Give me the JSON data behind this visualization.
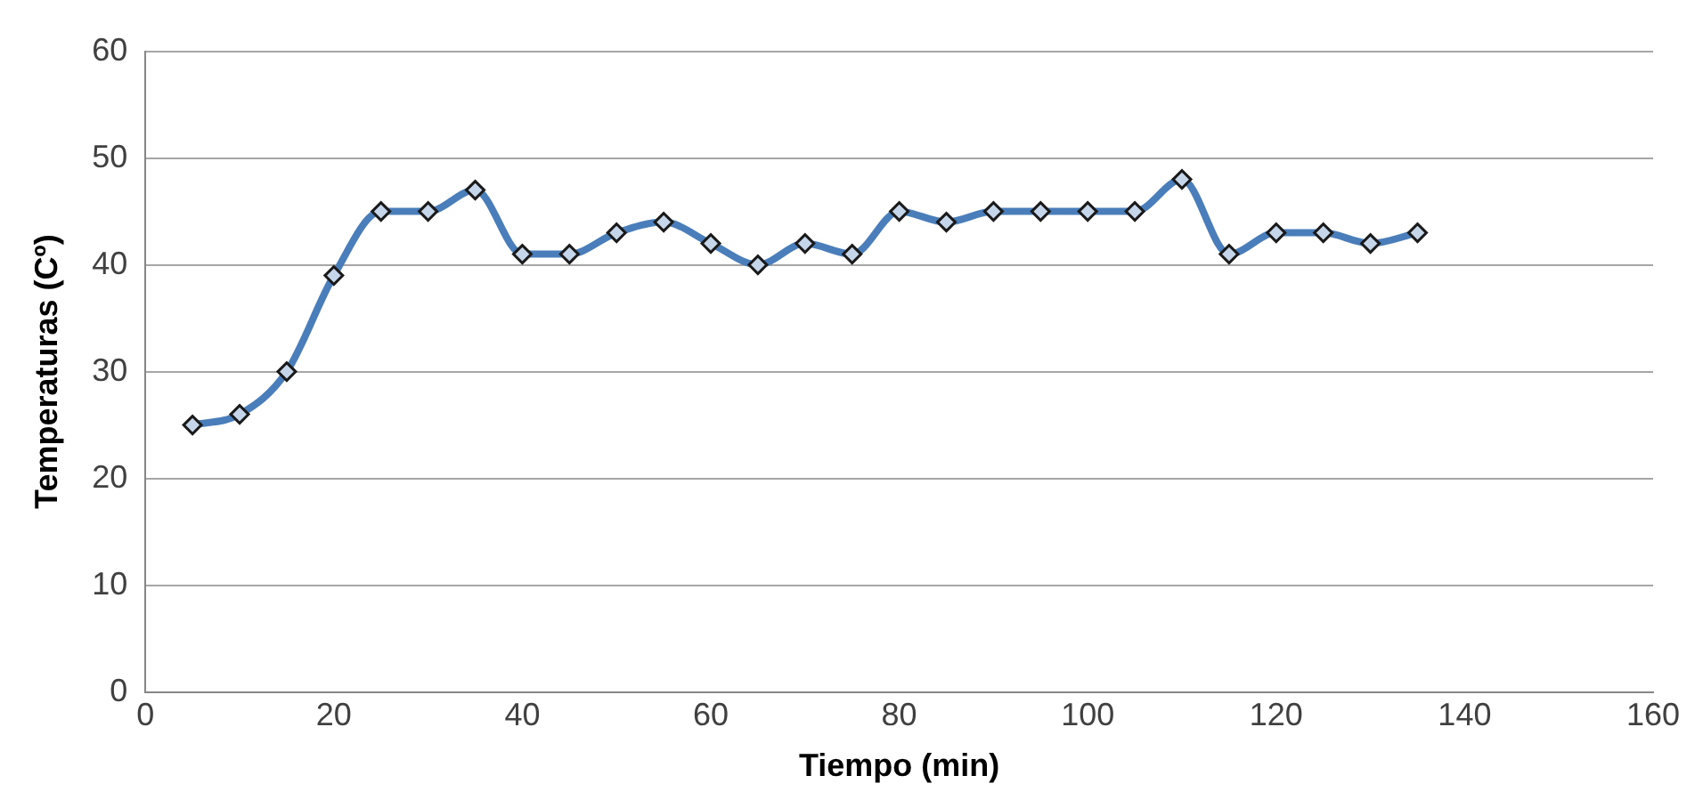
{
  "chart_data": {
    "type": "line",
    "xlabel": "Tiempo (min)",
    "ylabel": "Temperaturas (Cº)",
    "x": [
      5,
      10,
      15,
      20,
      25,
      30,
      35,
      40,
      45,
      50,
      55,
      60,
      65,
      70,
      75,
      80,
      85,
      90,
      95,
      100,
      105,
      110,
      115,
      120,
      125,
      130,
      135
    ],
    "series": [
      {
        "color": "#4a7ebb",
        "values": [
          25,
          26,
          30,
          39,
          45,
          45,
          47,
          41,
          41,
          43,
          44,
          42,
          40,
          42,
          41,
          45,
          44,
          45,
          45,
          45,
          45,
          48,
          41,
          43,
          43,
          42,
          43
        ]
      }
    ],
    "xlim": [
      0,
      160
    ],
    "xticks": [
      0,
      20,
      40,
      60,
      80,
      100,
      120,
      140,
      160
    ],
    "ylim": [
      0,
      60
    ],
    "yticks": [
      0,
      10,
      20,
      30,
      40,
      50,
      60
    ],
    "grid": "y",
    "legend": false,
    "marker": "diamond",
    "line_style": "solid"
  }
}
